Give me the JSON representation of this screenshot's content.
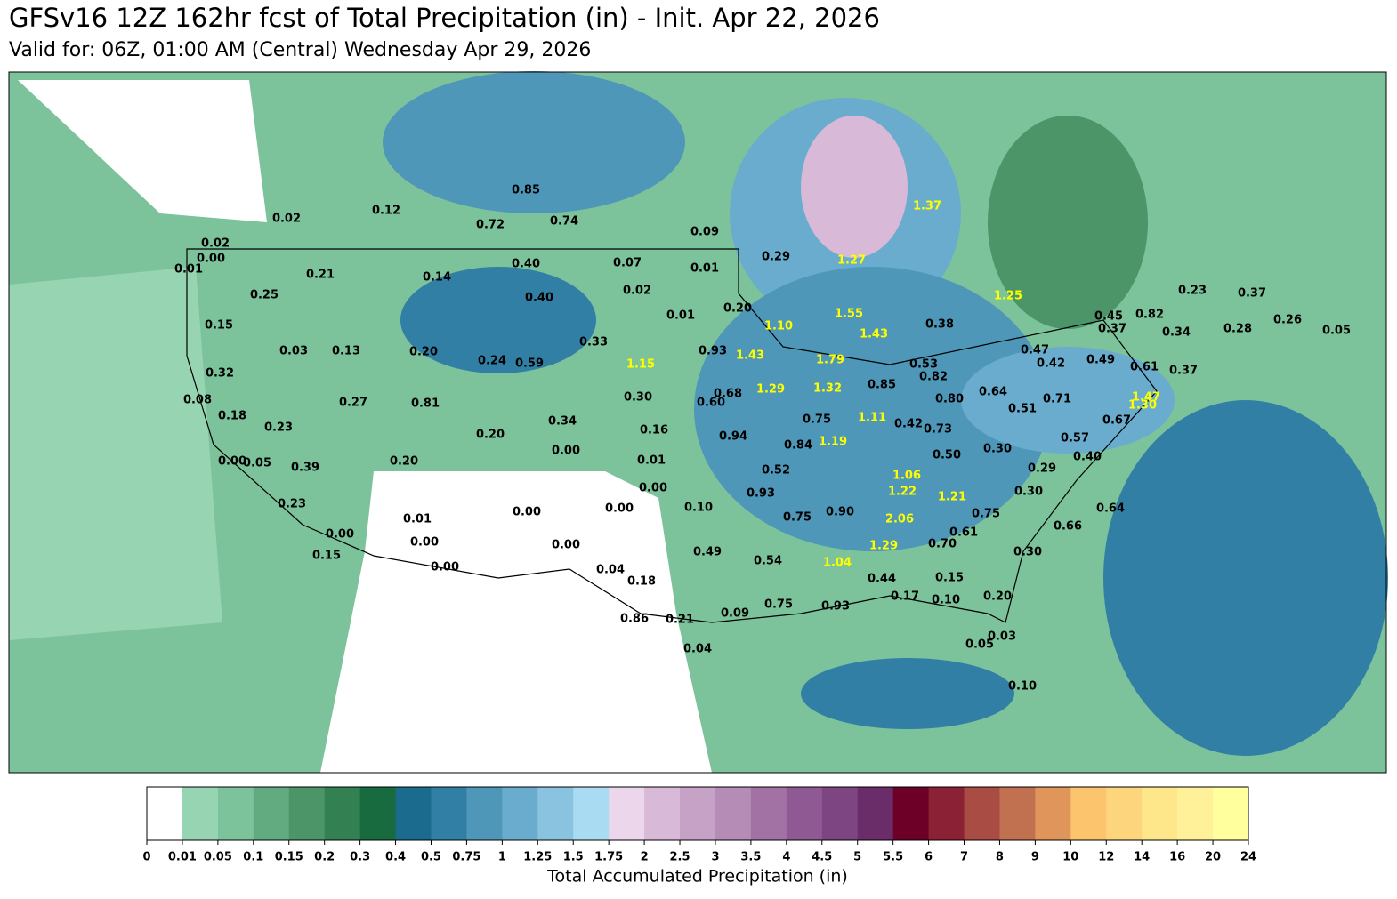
{
  "header": {
    "title": "GFSv16 12Z 162hr fcst of Total Precipitation (in) - Init. Apr 22, 2026",
    "subtitle": "Valid for: 06Z, 01:00 AM (Central) Wednesday Apr 29, 2026"
  },
  "map_labels": [
    {
      "text": "0.85",
      "color": "#000000"
    },
    {
      "text": "0.12",
      "color": "#000000"
    },
    {
      "text": "0.02",
      "color": "#000000"
    },
    {
      "text": "0.72",
      "color": "#000000"
    },
    {
      "text": "0.74",
      "color": "#000000"
    },
    {
      "text": "0.09",
      "color": "#000000"
    },
    {
      "text": "0.02",
      "color": "#000000"
    },
    {
      "text": "0.00",
      "color": "#000000"
    },
    {
      "text": "0.01",
      "color": "#000000"
    },
    {
      "text": "0.21",
      "color": "#000000"
    },
    {
      "text": "0.14",
      "color": "#000000"
    },
    {
      "text": "0.40",
      "color": "#000000"
    },
    {
      "text": "0.07",
      "color": "#000000"
    },
    {
      "text": "0.01",
      "color": "#000000"
    },
    {
      "text": "0.29",
      "color": "#000000"
    },
    {
      "text": "0.25",
      "color": "#000000"
    },
    {
      "text": "0.40",
      "color": "#000000"
    },
    {
      "text": "0.02",
      "color": "#000000"
    },
    {
      "text": "0.01",
      "color": "#000000"
    },
    {
      "text": "0.20",
      "color": "#000000"
    },
    {
      "text": "0.15",
      "color": "#000000"
    },
    {
      "text": "0.03",
      "color": "#000000"
    },
    {
      "text": "0.13",
      "color": "#000000"
    },
    {
      "text": "0.20",
      "color": "#000000"
    },
    {
      "text": "0.33",
      "color": "#000000"
    },
    {
      "text": "0.93",
      "color": "#000000"
    },
    {
      "text": "0.24",
      "color": "#000000"
    },
    {
      "text": "0.59",
      "color": "#000000"
    },
    {
      "text": "0.32",
      "color": "#000000"
    },
    {
      "text": "0.38",
      "color": "#000000"
    },
    {
      "text": "0.53",
      "color": "#000000"
    },
    {
      "text": "0.68",
      "color": "#000000"
    },
    {
      "text": "0.60",
      "color": "#000000"
    },
    {
      "text": "0.30",
      "color": "#000000"
    },
    {
      "text": "0.08",
      "color": "#000000"
    },
    {
      "text": "0.27",
      "color": "#000000"
    },
    {
      "text": "0.81",
      "color": "#000000"
    },
    {
      "text": "0.85",
      "color": "#000000"
    },
    {
      "text": "0.82",
      "color": "#000000"
    },
    {
      "text": "0.64",
      "color": "#000000"
    },
    {
      "text": "0.80",
      "color": "#000000"
    },
    {
      "text": "0.51",
      "color": "#000000"
    },
    {
      "text": "0.71",
      "color": "#000000"
    },
    {
      "text": "0.18",
      "color": "#000000"
    },
    {
      "text": "0.34",
      "color": "#000000"
    },
    {
      "text": "0.16",
      "color": "#000000"
    },
    {
      "text": "0.75",
      "color": "#000000"
    },
    {
      "text": "0.42",
      "color": "#000000"
    },
    {
      "text": "0.73",
      "color": "#000000"
    },
    {
      "text": "0.94",
      "color": "#000000"
    },
    {
      "text": "0.84",
      "color": "#000000"
    },
    {
      "text": "0.23",
      "color": "#000000"
    },
    {
      "text": "0.20",
      "color": "#000000"
    },
    {
      "text": "0.00",
      "color": "#000000"
    },
    {
      "text": "0.01",
      "color": "#000000"
    },
    {
      "text": "0.50",
      "color": "#000000"
    },
    {
      "text": "0.30",
      "color": "#000000"
    },
    {
      "text": "0.57",
      "color": "#000000"
    },
    {
      "text": "0.40",
      "color": "#000000"
    },
    {
      "text": "0.00",
      "color": "#000000"
    },
    {
      "text": "0.05",
      "color": "#000000"
    },
    {
      "text": "0.39",
      "color": "#000000"
    },
    {
      "text": "0.20",
      "color": "#000000"
    },
    {
      "text": "0.52",
      "color": "#000000"
    },
    {
      "text": "0.29",
      "color": "#000000"
    },
    {
      "text": "0.00",
      "color": "#000000"
    },
    {
      "text": "0.93",
      "color": "#000000"
    },
    {
      "text": "0.30",
      "color": "#000000"
    },
    {
      "text": "0.23",
      "color": "#000000"
    },
    {
      "text": "0.01",
      "color": "#000000"
    },
    {
      "text": "0.00",
      "color": "#000000"
    },
    {
      "text": "0.00",
      "color": "#000000"
    },
    {
      "text": "0.10",
      "color": "#000000"
    },
    {
      "text": "0.75",
      "color": "#000000"
    },
    {
      "text": "0.90",
      "color": "#000000"
    },
    {
      "text": "0.75",
      "color": "#000000"
    },
    {
      "text": "0.61",
      "color": "#000000"
    },
    {
      "text": "0.64",
      "color": "#000000"
    },
    {
      "text": "0.66",
      "color": "#000000"
    },
    {
      "text": "0.00",
      "color": "#000000"
    },
    {
      "text": "0.00",
      "color": "#000000"
    },
    {
      "text": "0.00",
      "color": "#000000"
    },
    {
      "text": "0.15",
      "color": "#000000"
    },
    {
      "text": "0.70",
      "color": "#000000"
    },
    {
      "text": "0.30",
      "color": "#000000"
    },
    {
      "text": "0.49",
      "color": "#000000"
    },
    {
      "text": "0.54",
      "color": "#000000"
    },
    {
      "text": "0.00",
      "color": "#000000"
    },
    {
      "text": "0.04",
      "color": "#000000"
    },
    {
      "text": "0.18",
      "color": "#000000"
    },
    {
      "text": "0.44",
      "color": "#000000"
    },
    {
      "text": "0.15",
      "color": "#000000"
    },
    {
      "text": "0.17",
      "color": "#000000"
    },
    {
      "text": "0.10",
      "color": "#000000"
    },
    {
      "text": "0.20",
      "color": "#000000"
    },
    {
      "text": "0.75",
      "color": "#000000"
    },
    {
      "text": "0.09",
      "color": "#000000"
    },
    {
      "text": "0.86",
      "color": "#000000"
    },
    {
      "text": "0.21",
      "color": "#000000"
    },
    {
      "text": "0.93",
      "color": "#000000"
    },
    {
      "text": "0.04",
      "color": "#000000"
    },
    {
      "text": "0.05",
      "color": "#000000"
    },
    {
      "text": "0.03",
      "color": "#000000"
    },
    {
      "text": "0.10",
      "color": "#000000"
    },
    {
      "text": "0.45",
      "color": "#000000"
    },
    {
      "text": "0.82",
      "color": "#000000"
    },
    {
      "text": "0.37",
      "color": "#000000"
    },
    {
      "text": "0.34",
      "color": "#000000"
    },
    {
      "text": "0.28",
      "color": "#000000"
    },
    {
      "text": "0.23",
      "color": "#000000"
    },
    {
      "text": "0.37",
      "color": "#000000"
    },
    {
      "text": "0.26",
      "color": "#000000"
    },
    {
      "text": "0.05",
      "color": "#000000"
    },
    {
      "text": "0.47",
      "color": "#000000"
    },
    {
      "text": "0.42",
      "color": "#000000"
    },
    {
      "text": "0.49",
      "color": "#000000"
    },
    {
      "text": "0.61",
      "color": "#000000"
    },
    {
      "text": "0.37",
      "color": "#000000"
    },
    {
      "text": "0.67",
      "color": "#000000"
    },
    {
      "text": "1.37",
      "color": "#ffff00"
    },
    {
      "text": "1.27",
      "color": "#ffff00"
    },
    {
      "text": "1.25",
      "color": "#ffff00"
    },
    {
      "text": "1.10",
      "color": "#ffff00"
    },
    {
      "text": "1.55",
      "color": "#ffff00"
    },
    {
      "text": "1.43",
      "color": "#ffff00"
    },
    {
      "text": "1.15",
      "color": "#ffff00"
    },
    {
      "text": "1.43",
      "color": "#ffff00"
    },
    {
      "text": "1.79",
      "color": "#ffff00"
    },
    {
      "text": "1.29",
      "color": "#ffff00"
    },
    {
      "text": "1.32",
      "color": "#ffff00"
    },
    {
      "text": "1.11",
      "color": "#ffff00"
    },
    {
      "text": "1.19",
      "color": "#ffff00"
    },
    {
      "text": "1.06",
      "color": "#ffff00"
    },
    {
      "text": "1.22",
      "color": "#ffff00"
    },
    {
      "text": "1.21",
      "color": "#ffff00"
    },
    {
      "text": "2.06",
      "color": "#ffff00"
    },
    {
      "text": "1.29",
      "color": "#ffff00"
    },
    {
      "text": "1.04",
      "color": "#ffff00"
    },
    {
      "text": "1.47",
      "color": "#ffff00"
    },
    {
      "text": "1.30",
      "color": "#ffff00"
    }
  ],
  "colorbar": {
    "label": "Total Accumulated Precipitation (in)",
    "ticks": [
      0,
      0.01,
      0.05,
      0.1,
      0.15,
      0.2,
      0.3,
      0.4,
      0.5,
      0.75,
      1,
      1.25,
      1.5,
      1.75,
      2,
      2.5,
      3,
      3.5,
      4,
      4.5,
      5,
      5.5,
      6,
      7,
      8,
      9,
      10,
      12,
      14,
      16,
      20,
      24
    ],
    "colors": [
      "#ffffff",
      "#97d5b2",
      "#7cc39b",
      "#62ab81",
      "#4b9569",
      "#338152",
      "#186b3f",
      "#1a6b8e",
      "#327fa6",
      "#4e97b9",
      "#6aaccd",
      "#89c3e0",
      "#a9dbf3",
      "#ecd6eb",
      "#d8b9d7",
      "#c6a2c7",
      "#b48cb6",
      "#a172a3",
      "#8f5a93",
      "#7d4683",
      "#6a2d69",
      "#6c0027",
      "#8a2134",
      "#a84c44",
      "#c27150",
      "#e0955a",
      "#fbc46d",
      "#fdd57c",
      "#fee78a",
      "#fff19a",
      "#ffff9e"
    ]
  }
}
